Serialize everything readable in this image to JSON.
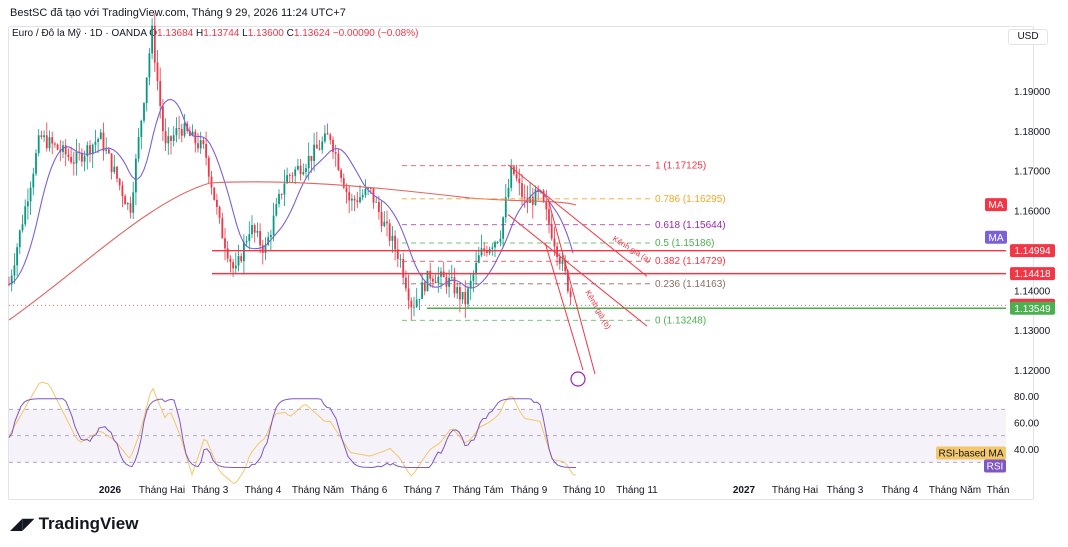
{
  "header": {
    "credit": "BestSC đã tạo với TradingView.com, Tháng 9 29, 2026 11:24 UTC+7"
  },
  "legend": {
    "symbol": "Euro / Đô la Mỹ · 1D · OANDA",
    "o_label": "O",
    "o_value": "1.13684",
    "h_label": "H",
    "h_value": "1.13744",
    "l_label": "L",
    "l_value": "1.13600",
    "c_label": "C",
    "c_value": "1.13624",
    "change": "−0.00090 (−0.08%)"
  },
  "currency_button": "USD",
  "footer": {
    "brand": "TradingView"
  },
  "colors": {
    "up": "#089981",
    "down": "#f23645",
    "ma_fast": "#7b61d8",
    "ma_slow": "#e0655e",
    "hline_red": "#f23645",
    "hline_green": "#4caf50",
    "rsi": "#7e57c2",
    "rsi_ma": "#f4c76a"
  },
  "chart_data": {
    "type": "candlestick",
    "price_axis": {
      "ticks": [
        "1.19000",
        "1.18000",
        "1.17000",
        "1.16000",
        "1.14000",
        "1.13000",
        "1.12000"
      ]
    },
    "time_axis": [
      "2026",
      "Tháng Hai",
      "Tháng 3",
      "Tháng 4",
      "Tháng Năm",
      "Tháng 6",
      "Tháng 7",
      "Tháng Tám",
      "Tháng 9",
      "Tháng 10",
      "Tháng 11",
      "2027",
      "Tháng Hai",
      "Tháng 3",
      "Tháng 4",
      "Tháng Năm",
      "Thán"
    ],
    "rsi_axis": {
      "ticks": [
        "80.00",
        "60.00",
        "40.00"
      ],
      "band": [
        30,
        70
      ]
    },
    "price_labels": [
      {
        "text": "MA",
        "color": "#f23645",
        "price": 1.1615
      },
      {
        "text": "MA",
        "color": "#7b61d8",
        "price": 1.1533
      },
      {
        "text": "1.14994",
        "color": "#f23645",
        "price": 1.14994
      },
      {
        "text": "1.14418",
        "color": "#f23645",
        "price": 1.14418
      },
      {
        "text": "1.13624",
        "color": "#f23645",
        "price": 1.13624
      },
      {
        "text": "1.13549",
        "color": "#4caf50",
        "price": 1.13549
      }
    ],
    "rsi_labels": [
      {
        "text": "RSI-based MA",
        "color": "#f4c76a",
        "value": 36
      },
      {
        "text": "RSI",
        "color": "#7e57c2",
        "value": 29
      }
    ],
    "fibonacci": [
      {
        "label": "1 (1.17125)",
        "price": 1.17125,
        "color": "#f23645"
      },
      {
        "label": "0.786 (1.16295)",
        "price": 1.16295,
        "color": "#f5a623"
      },
      {
        "label": "0.618 (1.15644)",
        "price": 1.15644,
        "color": "#9c27b0"
      },
      {
        "label": "0.5 (1.15186)",
        "price": 1.15186,
        "color": "#4caf50"
      },
      {
        "label": "0.382 (1.14729)",
        "price": 1.14729,
        "color": "#f23645"
      },
      {
        "label": "0.236 (1.14163)",
        "price": 1.14163,
        "color": "#8d6e63"
      },
      {
        "label": "0 (1.13248)",
        "price": 1.13248,
        "color": "#4caf50"
      }
    ],
    "channel_labels": [
      "Kênh giá (a)",
      "Kênh giá (b)"
    ],
    "horizontal_lines": [
      {
        "price": 1.14994,
        "color": "#f23645"
      },
      {
        "price": 1.14418,
        "color": "#f23645"
      },
      {
        "price": 1.13549,
        "color": "#4caf50"
      }
    ],
    "price_range": [
      1.112,
      1.212
    ],
    "rsi_range": [
      22,
      88
    ]
  }
}
